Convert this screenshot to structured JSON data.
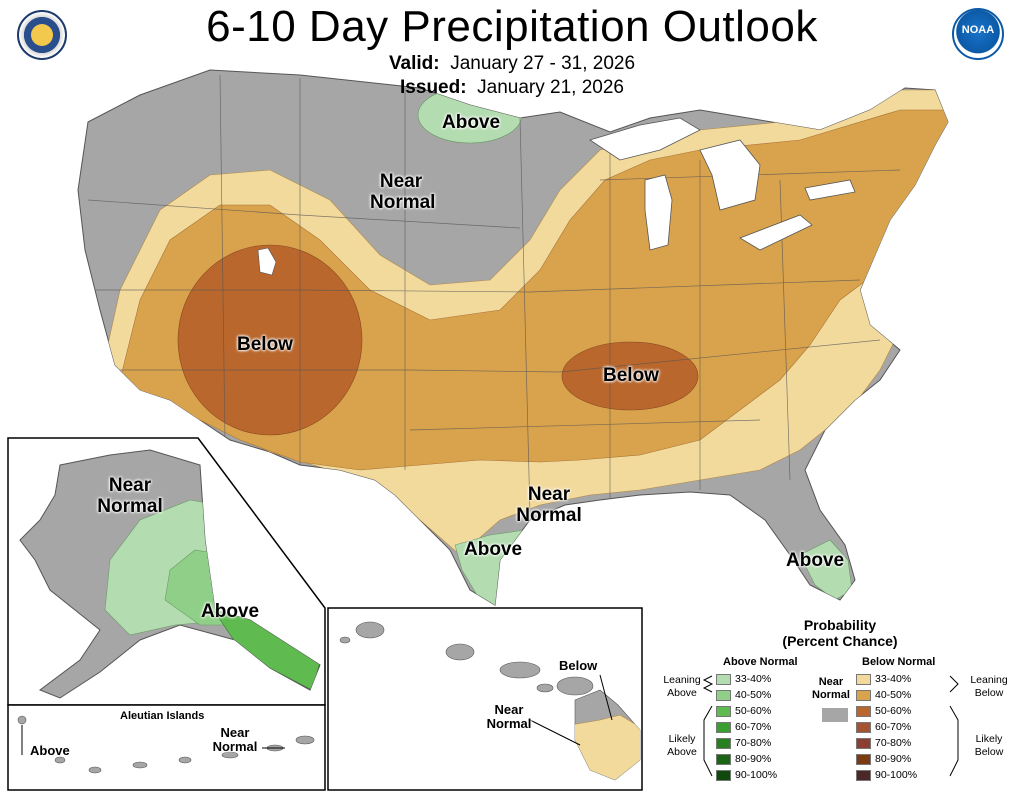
{
  "header": {
    "title": "6-10 Day Precipitation Outlook",
    "valid_label": "Valid:",
    "valid_value": "January 27 - 31, 2026",
    "issued_label": "Issued:",
    "issued_value": "January 21, 2026",
    "noaa_logo_text": "NOAA"
  },
  "map_labels": {
    "above_north": "Above",
    "near_normal_north_1": "Near",
    "near_normal_north_2": "Normal",
    "below_west": "Below",
    "below_central": "Below",
    "near_normal_south_1": "Near",
    "near_normal_south_2": "Normal",
    "above_texas": "Above",
    "above_florida": "Above"
  },
  "alaska": {
    "near_normal_1": "Near",
    "near_normal_2": "Normal",
    "above": "Above",
    "aleutian_title": "Aleutian Islands",
    "aleutian_above": "Above",
    "aleutian_near_1": "Near",
    "aleutian_near_2": "Normal"
  },
  "hawaii": {
    "below": "Below",
    "near_1": "Near",
    "near_2": "Normal"
  },
  "legend": {
    "title_1": "Probability",
    "title_2": "(Percent Chance)",
    "above_header": "Above Normal",
    "below_header": "Below Normal",
    "near_label_1": "Near",
    "near_label_2": "Normal",
    "leaning_above_1": "Leaning",
    "leaning_above_2": "Above",
    "likely_above_1": "Likely",
    "likely_above_2": "Above",
    "leaning_below_1": "Leaning",
    "leaning_below_2": "Below",
    "likely_below_1": "Likely",
    "likely_below_2": "Below",
    "near_color": "#a6a6a6",
    "above_items": [
      {
        "label": "33-40%",
        "color": "#b3dcb0"
      },
      {
        "label": "40-50%",
        "color": "#8fcf87"
      },
      {
        "label": "50-60%",
        "color": "#5fba50"
      },
      {
        "label": "60-70%",
        "color": "#3a9e31"
      },
      {
        "label": "70-80%",
        "color": "#26801f"
      },
      {
        "label": "80-90%",
        "color": "#1b6416"
      },
      {
        "label": "90-100%",
        "color": "#0f4a0c"
      }
    ],
    "below_items": [
      {
        "label": "33-40%",
        "color": "#f2d99c"
      },
      {
        "label": "40-50%",
        "color": "#d9a24c"
      },
      {
        "label": "50-60%",
        "color": "#b9672d"
      },
      {
        "label": "60-70%",
        "color": "#a35233"
      },
      {
        "label": "70-80%",
        "color": "#8d3e34"
      },
      {
        "label": "80-90%",
        "color": "#7a3b12"
      },
      {
        "label": "90-100%",
        "color": "#4a2828"
      }
    ]
  }
}
